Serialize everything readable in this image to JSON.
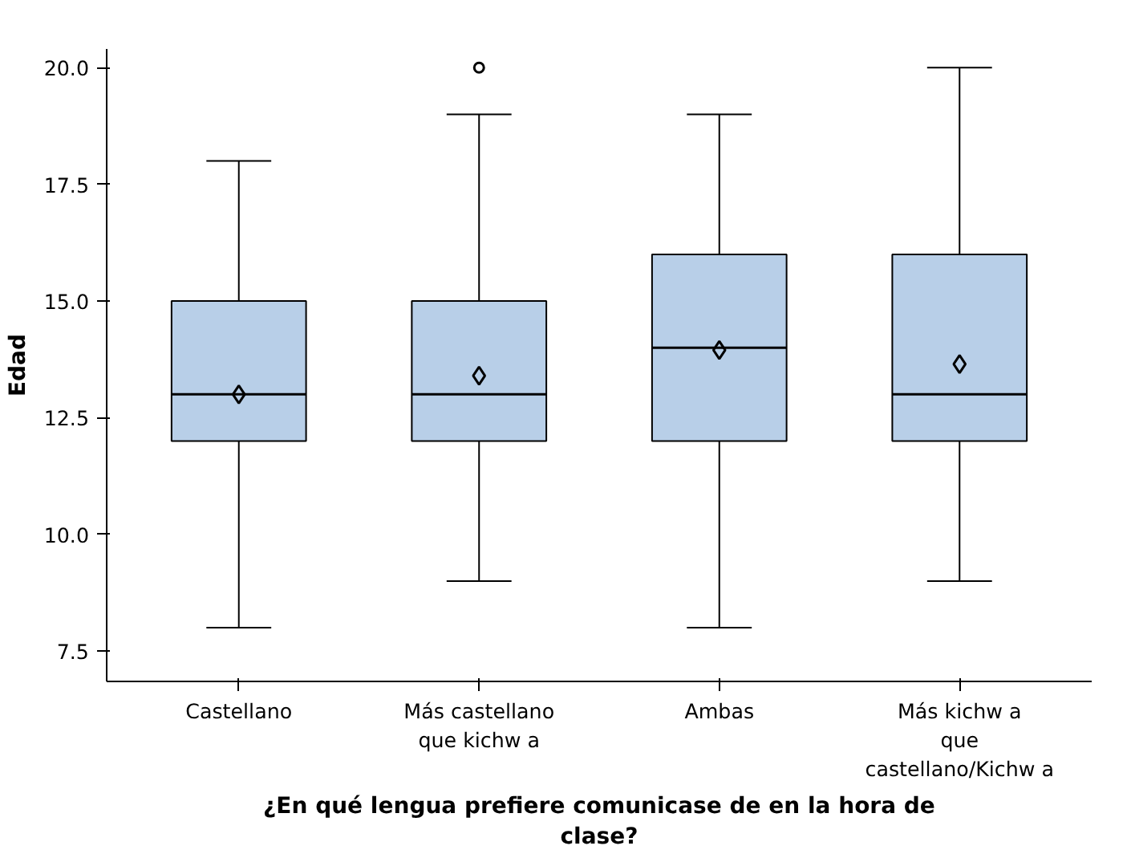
{
  "chart_data": {
    "type": "box",
    "xlabel": "¿En qué lengua prefiere comunicase de en la hora de clase?",
    "ylabel": "Edad",
    "categories": [
      "Castellano",
      "Más castellano que kichw a",
      "Ambas",
      "Más kichw a que castellano/Kichw a"
    ],
    "color": "#b8cfe8",
    "marker": "diamond",
    "grid": false,
    "ylim": [
      6.85,
      20.4
    ],
    "yticks": [
      {
        "value": 7.5,
        "label": "7.5"
      },
      {
        "value": 10,
        "label": "10.0"
      },
      {
        "value": 12.5,
        "label": "12.5"
      },
      {
        "value": 15,
        "label": "15.0"
      },
      {
        "value": 17.5,
        "label": "17.5"
      },
      {
        "value": 20,
        "label": "20.0"
      }
    ],
    "boxes": [
      {
        "low": 8,
        "q1": 12,
        "median": 13,
        "q3": 15,
        "high": 18,
        "mean": 13.0
      },
      {
        "low": 9,
        "q1": 12,
        "median": 13,
        "q3": 15,
        "high": 19,
        "mean": 13.4,
        "outliers": [
          20
        ]
      },
      {
        "low": 8,
        "q1": 12,
        "median": 14,
        "q3": 16,
        "high": 19,
        "mean": 13.95
      },
      {
        "low": 9,
        "q1": 12,
        "median": 13,
        "q3": 16,
        "high": 20,
        "mean": 13.65
      }
    ]
  }
}
